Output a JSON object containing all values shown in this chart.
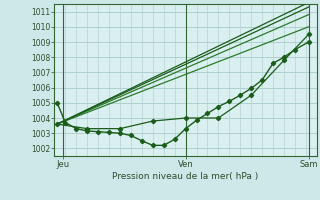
{
  "background_color": "#cce8e8",
  "plot_bg_color": "#daf0f0",
  "grid_color": "#aacccc",
  "line_color_dark": "#1a5c1a",
  "line_color_mid": "#2d7a2d",
  "xlabel": "Pression niveau de la mer( hPa )",
  "xlim": [
    0,
    48
  ],
  "ylim": [
    1001.5,
    1011.5
  ],
  "yticks": [
    1002,
    1003,
    1004,
    1005,
    1006,
    1007,
    1008,
    1009,
    1010,
    1011
  ],
  "xtick_labels": [
    [
      "Jeu",
      1.5
    ],
    [
      "Ven",
      24
    ],
    [
      "Sam",
      46.5
    ]
  ],
  "vlines": [
    1.5,
    24,
    46.5
  ],
  "series": [
    {
      "x": [
        0.5,
        2,
        4,
        6,
        8,
        10,
        12,
        14,
        16,
        18,
        20,
        22,
        24,
        26,
        28,
        30,
        32,
        34,
        36,
        38,
        40,
        42,
        44,
        46.5
      ],
      "y": [
        1005.0,
        1003.7,
        1003.3,
        1003.15,
        1003.1,
        1003.05,
        1003.0,
        1002.85,
        1002.5,
        1002.2,
        1002.2,
        1002.6,
        1003.3,
        1003.85,
        1004.3,
        1004.75,
        1005.1,
        1005.5,
        1005.95,
        1006.5,
        1007.6,
        1008.0,
        1008.5,
        1009.0
      ],
      "marker": "D",
      "ms": 2.2,
      "lw": 1.0,
      "color": "#1a5c1a"
    },
    {
      "x": [
        0.5,
        46.5
      ],
      "y": [
        1003.6,
        1010.8
      ],
      "marker": null,
      "lw": 0.9,
      "color": "#2d7a2d"
    },
    {
      "x": [
        0.5,
        46.5
      ],
      "y": [
        1003.6,
        1010.0
      ],
      "marker": null,
      "lw": 0.9,
      "color": "#2d7a2d"
    },
    {
      "x": [
        0.5,
        46.5
      ],
      "y": [
        1003.6,
        1011.3
      ],
      "marker": null,
      "lw": 0.9,
      "color": "#1a5c1a"
    },
    {
      "x": [
        0.5,
        46.5
      ],
      "y": [
        1003.6,
        1011.6
      ],
      "marker": null,
      "lw": 0.9,
      "color": "#1a5c1a"
    },
    {
      "x": [
        0.5,
        6,
        12,
        18,
        24,
        30,
        36,
        42,
        46.5
      ],
      "y": [
        1003.6,
        1003.3,
        1003.3,
        1003.8,
        1004.0,
        1004.0,
        1005.5,
        1007.8,
        1009.5
      ],
      "marker": "D",
      "ms": 2.2,
      "lw": 0.9,
      "color": "#1a5c1a"
    }
  ]
}
